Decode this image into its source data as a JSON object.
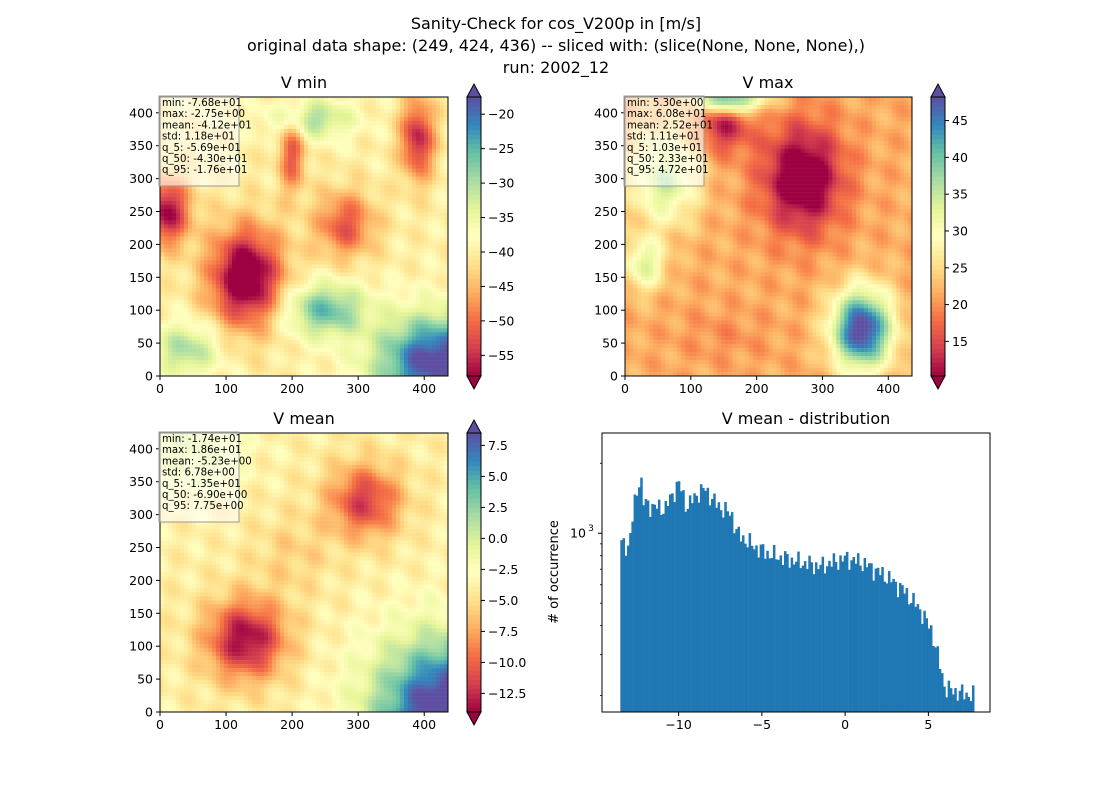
{
  "figure": {
    "suptitle_lines": [
      "Sanity-Check for cos_V200p in [m/s]",
      "original data shape: (249, 424, 436) -- sliced with: (slice(None, None, None),)",
      "run: 2002_12"
    ]
  },
  "colormap": {
    "name": "Spectral",
    "stops": [
      "#9e0142",
      "#d53e4f",
      "#f46d43",
      "#fdae61",
      "#fee08b",
      "#ffffbf",
      "#e6f598",
      "#abdda4",
      "#66c2a5",
      "#3288bd",
      "#5e4fa2"
    ]
  },
  "chart_data": [
    {
      "type": "heatmap",
      "title": "V min",
      "x_ticks": [
        "0",
        "100",
        "200",
        "300",
        "400"
      ],
      "y_ticks": [
        "0",
        "50",
        "100",
        "150",
        "200",
        "250",
        "300",
        "350",
        "400"
      ],
      "xlim": [
        0,
        436
      ],
      "ylim": [
        0,
        424
      ],
      "colorbar": {
        "min": -58,
        "max": -17.5,
        "ticks": [
          -55,
          -50,
          -45,
          -40,
          -35,
          -30,
          -25,
          -20
        ],
        "tick_labels": [
          "−55",
          "−50",
          "−45",
          "−40",
          "−35",
          "−30",
          "−25",
          "−20"
        ],
        "extend": "both"
      },
      "stats": [
        "min: -7.68e+01",
        "max: -2.75e+00",
        "mean: -4.12e+01",
        "std: 1.18e+01",
        "q_5: -5.69e+01",
        "q_50: -4.30e+01",
        "q_95: -1.76e+01"
      ],
      "field": {
        "base": 0.45,
        "blobs": [
          {
            "x": 130,
            "y": 150,
            "sx": 55,
            "sy": 75,
            "a": -0.55
          },
          {
            "x": 10,
            "y": 250,
            "sx": 35,
            "sy": 50,
            "a": -0.45
          },
          {
            "x": 280,
            "y": 230,
            "sx": 45,
            "sy": 50,
            "a": -0.3
          },
          {
            "x": 420,
            "y": 20,
            "sx": 90,
            "sy": 70,
            "a": 0.6
          },
          {
            "x": 250,
            "y": 100,
            "sx": 60,
            "sy": 40,
            "a": 0.35
          },
          {
            "x": 40,
            "y": 40,
            "sx": 50,
            "sy": 40,
            "a": 0.25
          },
          {
            "x": 230,
            "y": 390,
            "sx": 60,
            "sy": 30,
            "a": 0.25
          },
          {
            "x": 390,
            "y": 360,
            "sx": 25,
            "sy": 60,
            "a": -0.4
          },
          {
            "x": 200,
            "y": 340,
            "sx": 20,
            "sy": 60,
            "a": -0.3
          }
        ]
      }
    },
    {
      "type": "heatmap",
      "title": "V max",
      "x_ticks": [
        "0",
        "100",
        "200",
        "300",
        "400"
      ],
      "y_ticks": [
        "0",
        "50",
        "100",
        "150",
        "200",
        "250",
        "300",
        "350",
        "400"
      ],
      "xlim": [
        0,
        436
      ],
      "ylim": [
        0,
        424
      ],
      "colorbar": {
        "min": 10.3,
        "max": 48.2,
        "ticks": [
          15,
          20,
          25,
          30,
          35,
          40,
          45
        ],
        "tick_labels": [
          "15",
          "20",
          "25",
          "30",
          "35",
          "40",
          "45"
        ],
        "extend": "both"
      },
      "stats": [
        "min: 5.30e+00",
        "max: 6.08e+01",
        "mean: 2.52e+01",
        "std: 1.11e+01",
        "q_5: 1.03e+01",
        "q_50: 2.33e+01",
        "q_95: 4.72e+01"
      ],
      "field": {
        "base": 0.3,
        "blobs": [
          {
            "x": 270,
            "y": 300,
            "sx": 60,
            "sy": 80,
            "a": -0.4
          },
          {
            "x": 150,
            "y": 380,
            "sx": 40,
            "sy": 40,
            "a": -0.25
          },
          {
            "x": 360,
            "y": 70,
            "sx": 45,
            "sy": 60,
            "a": 0.75
          },
          {
            "x": 160,
            "y": 420,
            "sx": 50,
            "sy": 20,
            "a": 0.55
          },
          {
            "x": 60,
            "y": 300,
            "sx": 50,
            "sy": 70,
            "a": 0.35
          },
          {
            "x": 30,
            "y": 170,
            "sx": 30,
            "sy": 40,
            "a": 0.3
          },
          {
            "x": 150,
            "y": 60,
            "sx": 70,
            "sy": 40,
            "a": -0.05
          }
        ]
      }
    },
    {
      "type": "heatmap",
      "title": "V mean",
      "x_ticks": [
        "0",
        "100",
        "200",
        "300",
        "400"
      ],
      "y_ticks": [
        "0",
        "50",
        "100",
        "150",
        "200",
        "250",
        "300",
        "350",
        "400"
      ],
      "xlim": [
        0,
        436
      ],
      "ylim": [
        0,
        424
      ],
      "colorbar": {
        "min": -14,
        "max": 8.5,
        "ticks": [
          -12.5,
          -10,
          -7.5,
          -5,
          -2.5,
          0,
          2.5,
          5,
          7.5
        ],
        "tick_labels": [
          "−12.5",
          "−10.0",
          "−7.5",
          "−5.0",
          "−2.5",
          "0.0",
          "2.5",
          "5.0",
          "7.5"
        ],
        "extend": "both"
      },
      "stats": [
        "min: -1.74e+01",
        "max: 1.86e+01",
        "mean: -5.23e+00",
        "std: 6.78e+00",
        "q_5: -1.35e+01",
        "q_50: -6.90e+00",
        "q_95: 7.75e+00"
      ],
      "field": {
        "base": 0.45,
        "blobs": [
          {
            "x": 130,
            "y": 110,
            "sx": 60,
            "sy": 60,
            "a": -0.45
          },
          {
            "x": 310,
            "y": 320,
            "sx": 55,
            "sy": 55,
            "a": -0.35
          },
          {
            "x": 436,
            "y": 0,
            "sx": 110,
            "sy": 110,
            "a": 0.65
          },
          {
            "x": 40,
            "y": 400,
            "sx": 80,
            "sy": 60,
            "a": 0.15
          },
          {
            "x": 200,
            "y": 240,
            "sx": 60,
            "sy": 60,
            "a": -0.08
          }
        ]
      }
    },
    {
      "type": "bar",
      "title": "V mean - distribution",
      "ylabel": "# of occurrence",
      "yscale": "log",
      "ylim": [
        170,
        2700
      ],
      "xlim": [
        -14.6,
        8.7
      ],
      "x_ticks": [
        -10,
        -5,
        0,
        5
      ],
      "x_tick_labels": [
        "−10",
        "−5",
        "0",
        "5"
      ],
      "y_tick_label": {
        "value": 1000,
        "base": "10",
        "exponent": "3"
      },
      "bar_color": "#1f77b4",
      "bins": {
        "start": -13.5,
        "end": 7.75,
        "count": 160
      },
      "profile": [
        [
          -13.5,
          900
        ],
        [
          -13.0,
          880
        ],
        [
          -12.6,
          1400
        ],
        [
          -12.3,
          1800
        ],
        [
          -12.1,
          1350
        ],
        [
          -11.5,
          1300
        ],
        [
          -10.8,
          1280
        ],
        [
          -10.3,
          1500
        ],
        [
          -10.0,
          1650
        ],
        [
          -9.5,
          1300
        ],
        [
          -8.8,
          1500
        ],
        [
          -8.4,
          1550
        ],
        [
          -7.8,
          1350
        ],
        [
          -7.2,
          1250
        ],
        [
          -6.8,
          1200
        ],
        [
          -6.5,
          1000
        ],
        [
          -5.5,
          880
        ],
        [
          -4.5,
          810
        ],
        [
          -3.0,
          760
        ],
        [
          -1.5,
          720
        ],
        [
          0.0,
          780
        ],
        [
          1.0,
          750
        ],
        [
          2.5,
          650
        ],
        [
          3.5,
          570
        ],
        [
          4.5,
          470
        ],
        [
          5.2,
          380
        ],
        [
          5.6,
          290
        ],
        [
          6.0,
          215
        ],
        [
          7.0,
          205
        ],
        [
          7.75,
          200
        ]
      ]
    }
  ]
}
